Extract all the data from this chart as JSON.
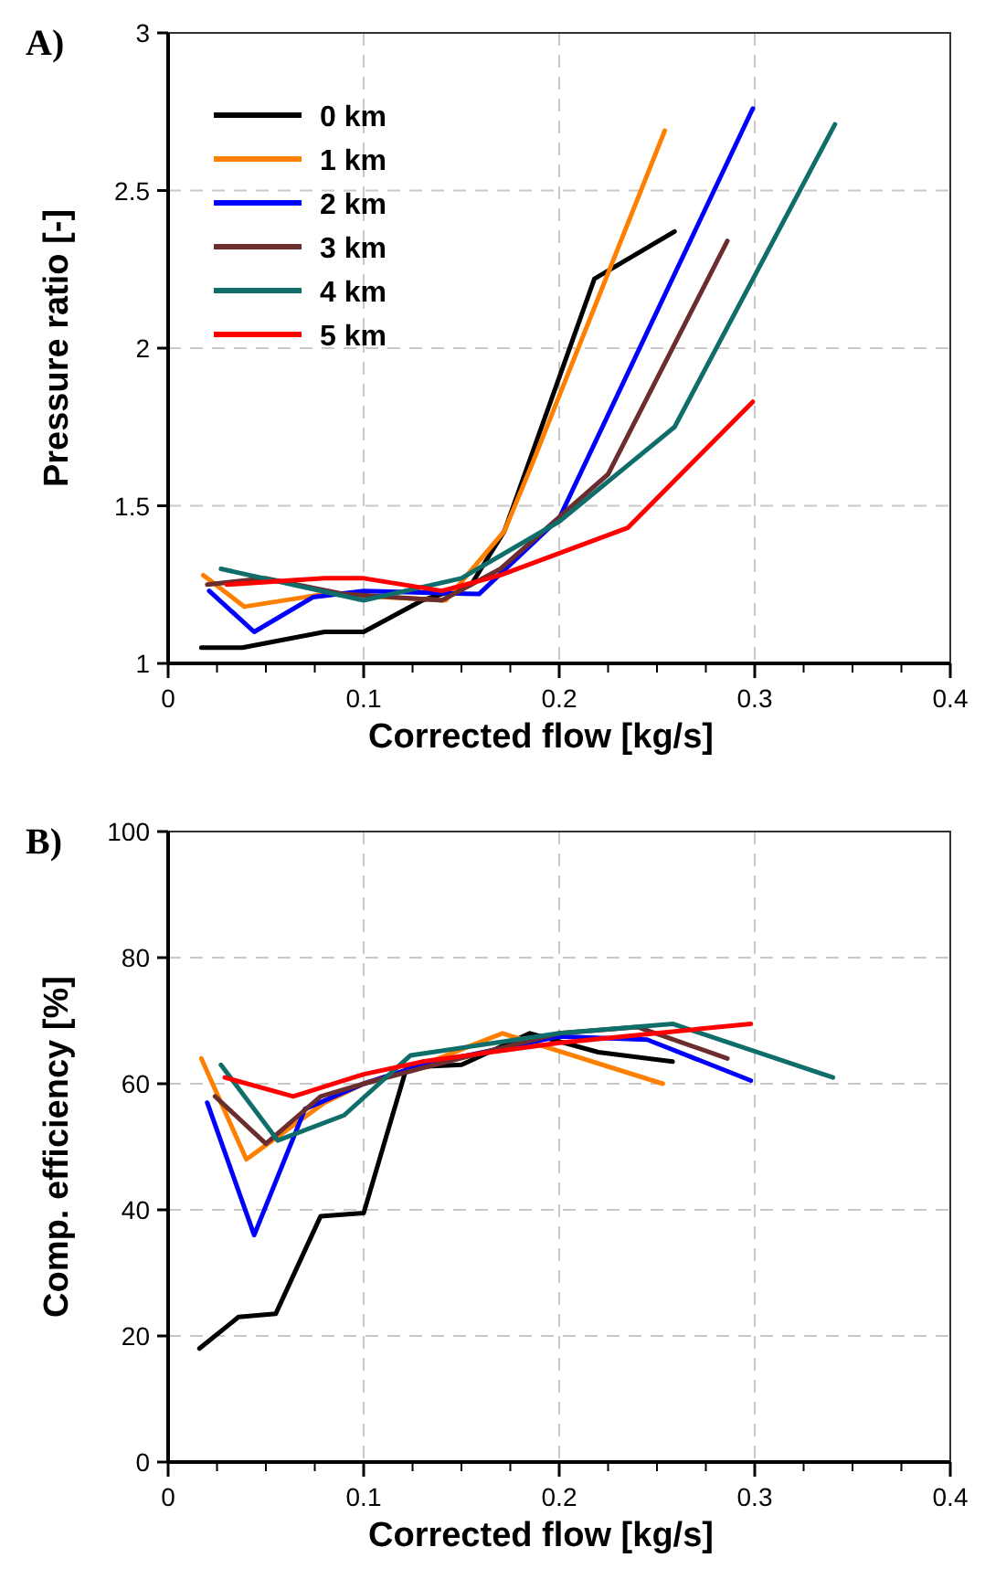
{
  "chart_data": [
    {
      "type": "line",
      "title": "A)",
      "xlabel": "Corrected flow [kg/s]",
      "ylabel": "Pressure ratio [-]",
      "xlim": [
        0,
        0.4
      ],
      "xticks": [
        0,
        0.1,
        0.2,
        0.3,
        0.4
      ],
      "ylim": [
        1,
        3
      ],
      "yticks": [
        1,
        1.5,
        2,
        2.5,
        3
      ],
      "grid": true,
      "legend": "top left",
      "line_style": "solid",
      "series": [
        {
          "name": "0 km",
          "color": "#000000",
          "x": [
            0.017,
            0.038,
            0.08,
            0.1,
            0.13,
            0.155,
            0.172,
            0.218,
            0.259
          ],
          "values": [
            1.05,
            1.05,
            1.1,
            1.1,
            1.2,
            1.25,
            1.42,
            2.22,
            2.37
          ]
        },
        {
          "name": "1 km",
          "color": "#ff7f00",
          "x": [
            0.018,
            0.039,
            0.08,
            0.142,
            0.172,
            0.186,
            0.254
          ],
          "values": [
            1.28,
            1.18,
            1.22,
            1.2,
            1.42,
            1.63,
            2.69
          ]
        },
        {
          "name": "2 km",
          "color": "#0000ff",
          "x": [
            0.021,
            0.044,
            0.074,
            0.1,
            0.159,
            0.2,
            0.299
          ],
          "values": [
            1.23,
            1.1,
            1.21,
            1.23,
            1.22,
            1.46,
            2.76
          ]
        },
        {
          "name": "3 km",
          "color": "#6b2d2d",
          "x": [
            0.02,
            0.05,
            0.09,
            0.14,
            0.17,
            0.225,
            0.286
          ],
          "values": [
            1.25,
            1.27,
            1.22,
            1.2,
            1.3,
            1.6,
            2.34
          ]
        },
        {
          "name": "4 km",
          "color": "#0f6e6a",
          "x": [
            0.027,
            0.1,
            0.15,
            0.2,
            0.259,
            0.341
          ],
          "values": [
            1.3,
            1.2,
            1.27,
            1.45,
            1.75,
            2.71
          ]
        },
        {
          "name": "5 km",
          "color": "#ff0000",
          "x": [
            0.03,
            0.08,
            0.1,
            0.14,
            0.17,
            0.235,
            0.299
          ],
          "values": [
            1.25,
            1.27,
            1.27,
            1.23,
            1.28,
            1.43,
            1.83
          ]
        }
      ]
    },
    {
      "type": "line",
      "title": "B)",
      "xlabel": "Corrected flow [kg/s]",
      "ylabel": "Comp. efficiency [%]",
      "xlim": [
        0,
        0.4
      ],
      "xticks": [
        0,
        0.1,
        0.2,
        0.3,
        0.4
      ],
      "ylim": [
        0,
        100
      ],
      "yticks": [
        0,
        20,
        40,
        60,
        80,
        100
      ],
      "grid": true,
      "legend": false,
      "line_style": "solid",
      "series": [
        {
          "color": "#000000",
          "x": [
            0.016,
            0.036,
            0.055,
            0.078,
            0.1,
            0.122,
            0.15,
            0.185,
            0.22,
            0.258
          ],
          "values": [
            18,
            23,
            23.5,
            39,
            39.5,
            62.6,
            63,
            68,
            65,
            63.5
          ]
        },
        {
          "color": "#ff7f00",
          "x": [
            0.017,
            0.04,
            0.08,
            0.1,
            0.13,
            0.171,
            0.253
          ],
          "values": [
            64,
            48,
            57,
            60,
            63,
            68,
            60
          ]
        },
        {
          "color": "#0000ff",
          "x": [
            0.02,
            0.044,
            0.07,
            0.1,
            0.13,
            0.2,
            0.245,
            0.298
          ],
          "values": [
            57,
            36,
            56,
            60,
            63,
            67.5,
            67,
            60.5
          ]
        },
        {
          "color": "#6b2d2d",
          "x": [
            0.024,
            0.05,
            0.078,
            0.1,
            0.13,
            0.2,
            0.24,
            0.286
          ],
          "values": [
            58,
            50.5,
            58,
            60,
            62.5,
            68,
            69,
            64
          ]
        },
        {
          "color": "#0f6e6a",
          "x": [
            0.027,
            0.056,
            0.09,
            0.124,
            0.2,
            0.258,
            0.34
          ],
          "values": [
            63,
            51,
            55,
            64.5,
            68,
            69.5,
            61
          ]
        },
        {
          "color": "#ff0000",
          "x": [
            0.029,
            0.064,
            0.1,
            0.13,
            0.2,
            0.298
          ],
          "values": [
            61,
            58,
            61.5,
            63.5,
            66.5,
            69.5
          ]
        }
      ]
    }
  ]
}
